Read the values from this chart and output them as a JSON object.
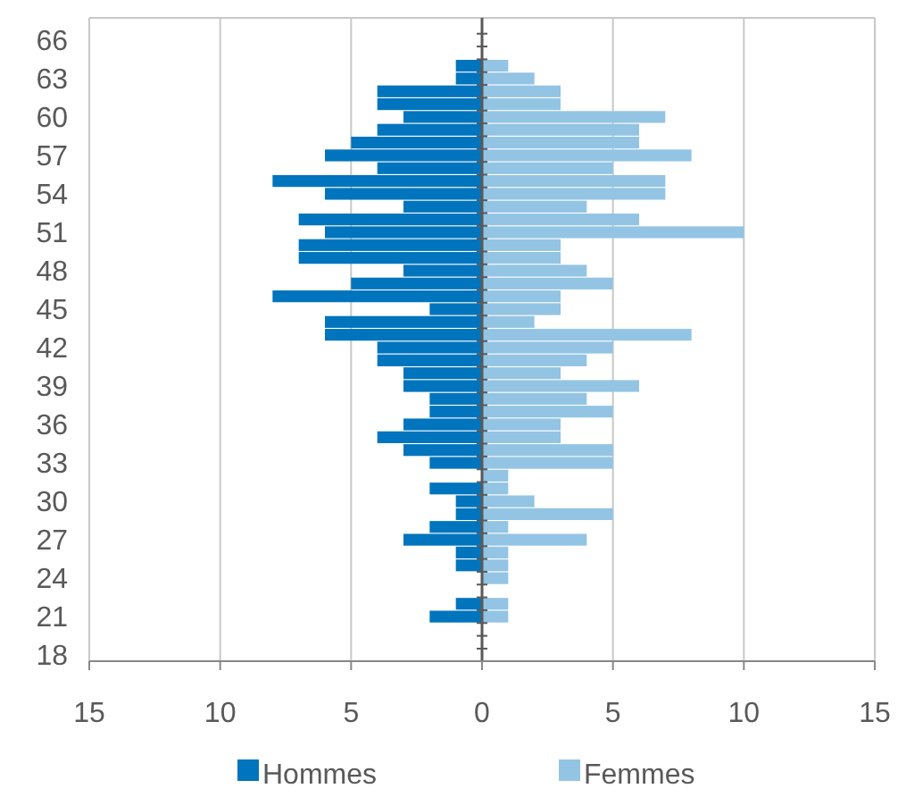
{
  "chart_data": {
    "type": "bar",
    "orientation": "horizontal",
    "stacked": true,
    "categories": [
      "66",
      null,
      null,
      "63",
      null,
      null,
      "60",
      null,
      null,
      "57",
      null,
      null,
      "54",
      null,
      null,
      "51",
      null,
      null,
      "48",
      null,
      null,
      "45",
      null,
      null,
      "42",
      null,
      null,
      "39",
      null,
      null,
      "36",
      null,
      null,
      "33",
      null,
      null,
      "30",
      null,
      null,
      "27",
      null,
      null,
      "24",
      null,
      null,
      "21",
      null,
      null,
      "18"
    ],
    "series": [
      {
        "name": "Hommes",
        "color": "#0074bd",
        "values": [
          0,
          0,
          -1,
          -1,
          -4,
          -4,
          -3,
          -4,
          -5,
          -6,
          -4,
          -8,
          -6,
          -3,
          -7,
          -6,
          -7,
          -7,
          -3,
          -5,
          -8,
          -2,
          -6,
          -6,
          -4,
          -4,
          -3,
          -3,
          -2,
          -2,
          -3,
          -4,
          -3,
          -2,
          0,
          -2,
          -1,
          -1,
          -2,
          -3,
          -1,
          -1,
          0,
          0,
          -1,
          -2,
          0,
          0,
          0
        ]
      },
      {
        "name": "Femmes",
        "color": "#93c4e4",
        "values": [
          0,
          0,
          1,
          2,
          3,
          3,
          7,
          6,
          6,
          8,
          5,
          7,
          7,
          4,
          6,
          10,
          3,
          3,
          4,
          5,
          3,
          3,
          2,
          8,
          5,
          4,
          3,
          6,
          4,
          5,
          3,
          3,
          5,
          5,
          1,
          1,
          2,
          5,
          1,
          4,
          1,
          1,
          1,
          0,
          1,
          1,
          0,
          0,
          0
        ]
      }
    ],
    "xlim": [
      -15,
      15
    ],
    "xticks": [
      {
        "value": -15,
        "label": "15"
      },
      {
        "value": -10,
        "label": "10"
      },
      {
        "value": -5,
        "label": "5"
      },
      0,
      5,
      10,
      15
    ],
    "grid": "x",
    "legend": "bottom"
  }
}
